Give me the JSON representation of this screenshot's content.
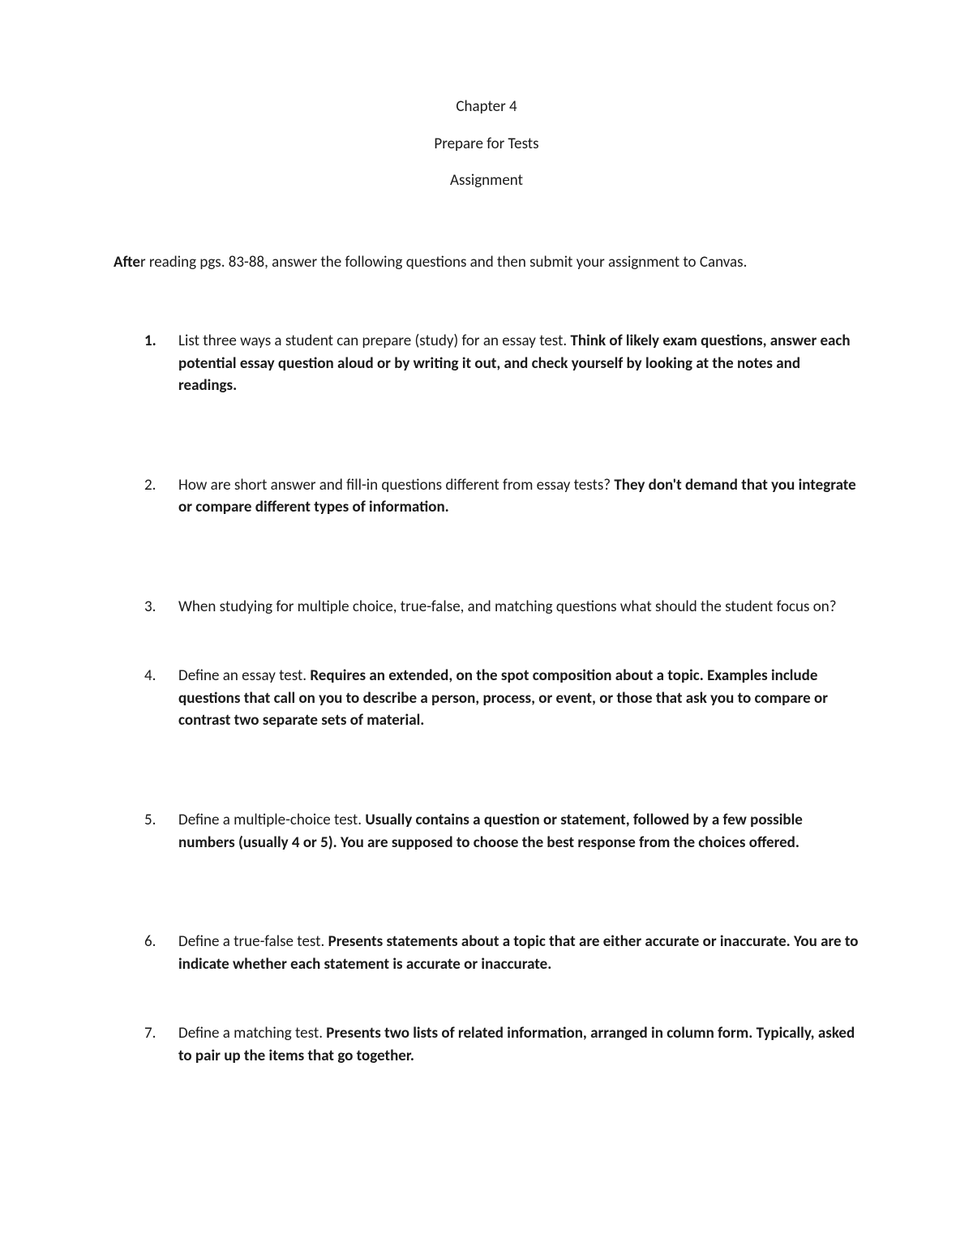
{
  "header": {
    "line1": "Chapter 4",
    "line2": "Prepare for Tests",
    "line3": "Assignment"
  },
  "intro": {
    "lead": "Afte",
    "rest": "r reading pgs. 83-88, answer the following questions and then submit your assignment to Canvas."
  },
  "questions": [
    {
      "num": "1.",
      "q": "List three ways a student can prepare (study) for an essay test. ",
      "a": "Think of likely exam questions, answer each potential essay question aloud or by writing it out, and check yourself by looking at the notes and readings."
    },
    {
      "num": "2.",
      "q": "How are short answer and fill-in questions different from essay tests? ",
      "a": "They don't demand that you integrate or compare different types of information."
    },
    {
      "num": "3.",
      "q": "When studying for multiple choice, true-false, and matching questions what should the student focus on?",
      "a": ""
    },
    {
      "num": "4.",
      "q": "Define an essay test. ",
      "a": "Requires an extended, on the spot composition about a topic. Examples include questions that call on you to describe a person, process, or event, or those that ask you to compare or contrast two separate sets of material."
    },
    {
      "num": "5.",
      "q": "Define a multiple-choice test. ",
      "a": "Usually contains a question or statement, followed by a few possible numbers (usually 4 or 5). You are supposed to choose the best response from the choices offered."
    },
    {
      "num": "6.",
      "q": "Define a true-false test. ",
      "a": "Presents statements about a topic that are either accurate or inaccurate. You are to indicate whether each statement is accurate or inaccurate."
    },
    {
      "num": "7.",
      "q": "Define a matching test. ",
      "a": "Presents two lists of related information, arranged in column form. Typically, asked to pair up the items that go together."
    }
  ]
}
